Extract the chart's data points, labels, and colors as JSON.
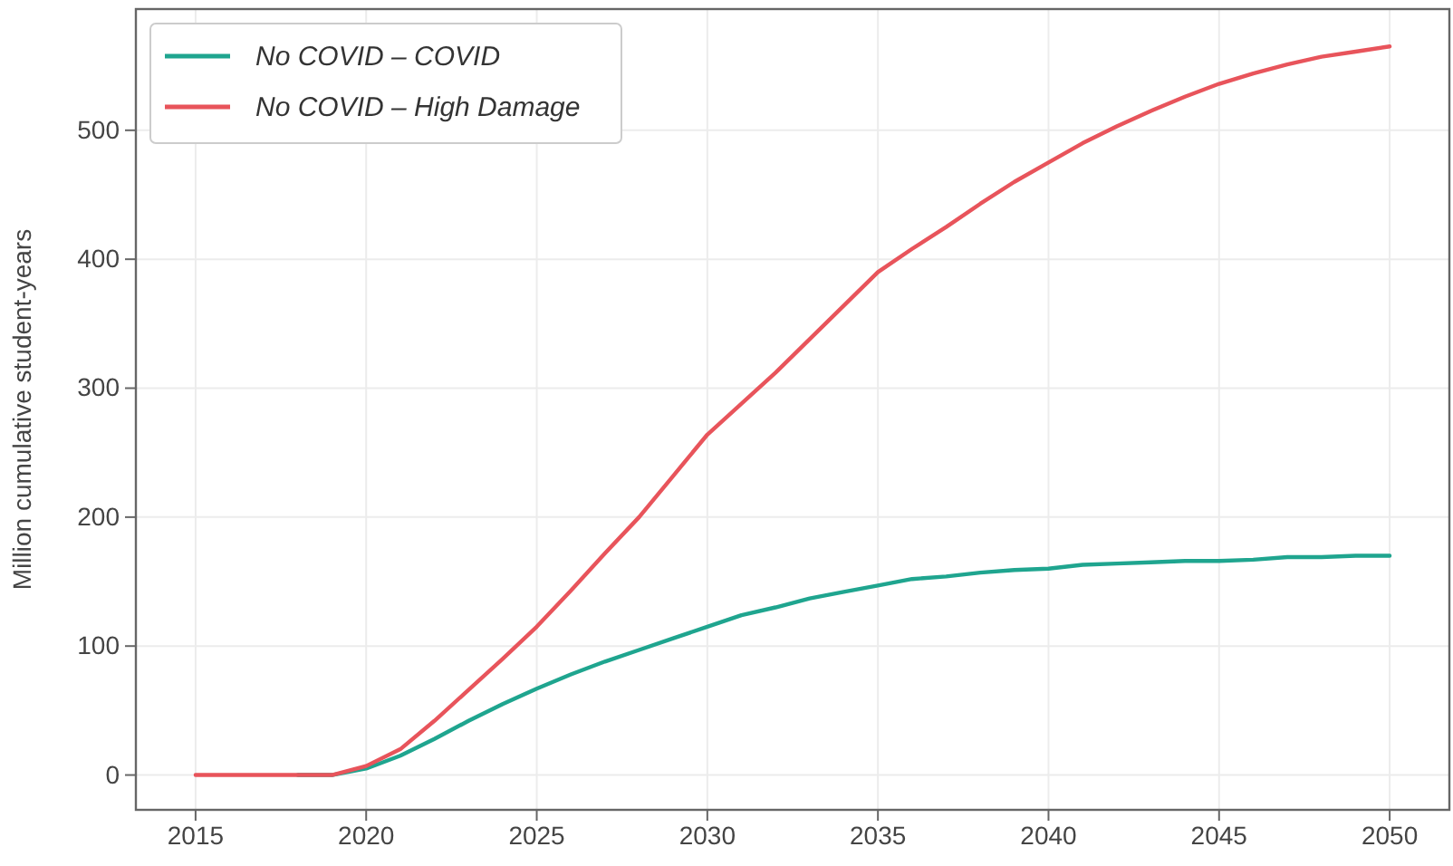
{
  "chart_data": {
    "type": "line",
    "ylabel": "Million cumulative student-years",
    "x": [
      2015,
      2016,
      2017,
      2018,
      2019,
      2020,
      2021,
      2022,
      2023,
      2024,
      2025,
      2026,
      2027,
      2028,
      2029,
      2030,
      2031,
      2032,
      2033,
      2034,
      2035,
      2036,
      2037,
      2038,
      2039,
      2040,
      2041,
      2042,
      2043,
      2044,
      2045,
      2046,
      2047,
      2048,
      2049,
      2050
    ],
    "series": [
      {
        "name": "No COVID – COVID",
        "color": "#1fa58f",
        "values": [
          null,
          null,
          null,
          0,
          0,
          5,
          15,
          28,
          42,
          55,
          67,
          78,
          88,
          97,
          106,
          115,
          124,
          130,
          137,
          142,
          147,
          152,
          154,
          157,
          159,
          160,
          163,
          164,
          165,
          166,
          166,
          167,
          169,
          169,
          170,
          170
        ]
      },
      {
        "name": "No COVID – High Damage",
        "color": "#e8545b",
        "values": [
          0,
          0,
          0,
          0,
          0,
          7,
          20,
          42,
          66,
          90,
          115,
          143,
          172,
          200,
          232,
          264,
          288,
          312,
          338,
          364,
          390,
          408,
          425,
          443,
          460,
          475,
          490,
          503,
          515,
          526,
          536,
          544,
          551,
          557,
          561,
          565
        ]
      }
    ],
    "xlim": [
      2013.25,
      2051.75
    ],
    "xticks": [
      2015,
      2020,
      2025,
      2030,
      2035,
      2040,
      2045,
      2050
    ],
    "ylim": [
      -27,
      594
    ],
    "yticks": [
      0,
      100,
      200,
      300,
      400,
      500
    ],
    "grid": true,
    "legend": "top left",
    "marker": "none",
    "line_style": "solid"
  }
}
